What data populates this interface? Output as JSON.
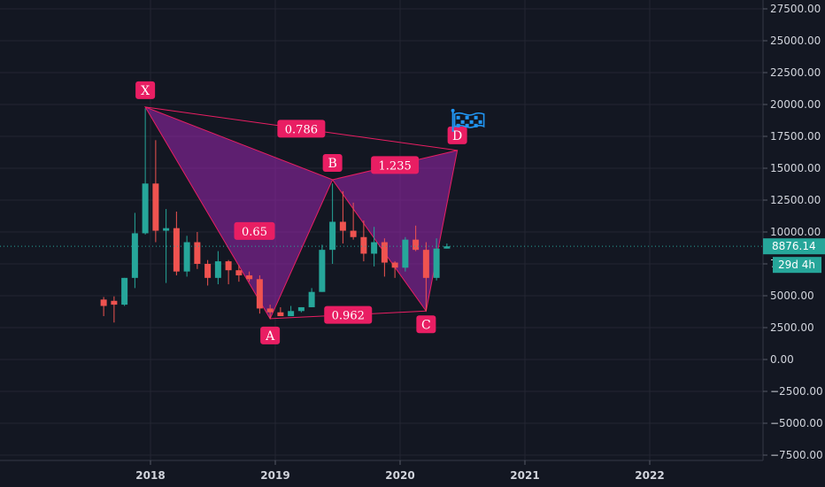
{
  "chart_data": {
    "type": "candlestick",
    "interval": "monthly",
    "y_ticks": [
      "27500.00",
      "25000.00",
      "22500.00",
      "20000.00",
      "17500.00",
      "15000.00",
      "12500.00",
      "10000.00",
      "7500.00",
      "5000.00",
      "2500.00",
      "0.00",
      "−2500.00",
      "−5000.00",
      "−7500.00"
    ],
    "x_ticks": [
      "2018",
      "2019",
      "2020",
      "2021",
      "2022"
    ],
    "ylim": [
      -8000,
      28500
    ],
    "current_price": "8876.14",
    "countdown": "29d 4h",
    "colors": {
      "up": "#26a69a",
      "down": "#ef5350",
      "pattern": "#e91e63",
      "pattern_fill": "#9c27b0",
      "price_line": "#26a69a"
    },
    "candles": [
      {
        "month": "2017-08",
        "o": 4700,
        "h": 4900,
        "l": 3400,
        "c": 4200
      },
      {
        "month": "2017-09",
        "o": 4600,
        "h": 4950,
        "l": 2900,
        "c": 4300
      },
      {
        "month": "2017-10",
        "o": 4300,
        "h": 6400,
        "l": 4200,
        "c": 6400
      },
      {
        "month": "2017-11",
        "o": 6400,
        "h": 11500,
        "l": 5600,
        "c": 9900
      },
      {
        "month": "2017-12",
        "o": 9900,
        "h": 19700,
        "l": 9800,
        "c": 13800
      },
      {
        "month": "2018-01",
        "o": 13800,
        "h": 17200,
        "l": 9200,
        "c": 10100
      },
      {
        "month": "2018-02",
        "o": 10100,
        "h": 11800,
        "l": 6000,
        "c": 10300
      },
      {
        "month": "2018-03",
        "o": 10300,
        "h": 11600,
        "l": 6600,
        "c": 6900
      },
      {
        "month": "2018-04",
        "o": 6900,
        "h": 9700,
        "l": 6500,
        "c": 9200
      },
      {
        "month": "2018-05",
        "o": 9200,
        "h": 10000,
        "l": 7100,
        "c": 7500
      },
      {
        "month": "2018-06",
        "o": 7500,
        "h": 7800,
        "l": 5800,
        "c": 6400
      },
      {
        "month": "2018-07",
        "o": 6400,
        "h": 8500,
        "l": 5900,
        "c": 7700
      },
      {
        "month": "2018-08",
        "o": 7700,
        "h": 7800,
        "l": 5900,
        "c": 7000
      },
      {
        "month": "2018-09",
        "o": 7000,
        "h": 7400,
        "l": 6100,
        "c": 6600
      },
      {
        "month": "2018-10",
        "o": 6600,
        "h": 6900,
        "l": 6100,
        "c": 6300
      },
      {
        "month": "2018-11",
        "o": 6300,
        "h": 6600,
        "l": 3600,
        "c": 4000
      },
      {
        "month": "2018-12",
        "o": 4000,
        "h": 4300,
        "l": 3200,
        "c": 3700
      },
      {
        "month": "2019-01",
        "o": 3700,
        "h": 4100,
        "l": 3400,
        "c": 3400
      },
      {
        "month": "2019-02",
        "o": 3400,
        "h": 4200,
        "l": 3400,
        "c": 3800
      },
      {
        "month": "2019-03",
        "o": 3800,
        "h": 4100,
        "l": 3700,
        "c": 4100
      },
      {
        "month": "2019-04",
        "o": 4100,
        "h": 5600,
        "l": 4100,
        "c": 5300
      },
      {
        "month": "2019-05",
        "o": 5300,
        "h": 9000,
        "l": 5300,
        "c": 8600
      },
      {
        "month": "2019-06",
        "o": 8600,
        "h": 13800,
        "l": 7500,
        "c": 10800
      },
      {
        "month": "2019-07",
        "o": 10800,
        "h": 13200,
        "l": 9100,
        "c": 10100
      },
      {
        "month": "2019-08",
        "o": 10100,
        "h": 12300,
        "l": 9400,
        "c": 9600
      },
      {
        "month": "2019-09",
        "o": 9600,
        "h": 10900,
        "l": 7700,
        "c": 8300
      },
      {
        "month": "2019-10",
        "o": 8300,
        "h": 10400,
        "l": 7300,
        "c": 9200
      },
      {
        "month": "2019-11",
        "o": 9200,
        "h": 9500,
        "l": 6500,
        "c": 7600
      },
      {
        "month": "2019-12",
        "o": 7600,
        "h": 7700,
        "l": 6400,
        "c": 7200
      },
      {
        "month": "2020-01",
        "o": 7200,
        "h": 9600,
        "l": 6900,
        "c": 9400
      },
      {
        "month": "2020-02",
        "o": 9400,
        "h": 10500,
        "l": 8500,
        "c": 8600
      },
      {
        "month": "2020-03",
        "o": 8600,
        "h": 9200,
        "l": 3800,
        "c": 6400
      },
      {
        "month": "2020-04",
        "o": 6400,
        "h": 9500,
        "l": 6200,
        "c": 8700
      },
      {
        "month": "2020-05",
        "o": 8700,
        "h": 9100,
        "l": 8700,
        "c": 8876
      }
    ],
    "harmonic_pattern": {
      "points": [
        {
          "label": "X",
          "month": "2017-12",
          "price": 19800
        },
        {
          "label": "A",
          "month": "2018-12",
          "price": 3200
        },
        {
          "label": "B",
          "month": "2019-06",
          "price": 14100
        },
        {
          "label": "C",
          "month": "2020-03",
          "price": 3800
        },
        {
          "label": "D",
          "month": "2020-06",
          "price": 16400
        }
      ],
      "ratios": [
        {
          "text": "0.65",
          "between": "XA-AB"
        },
        {
          "text": "0.786",
          "between": "XD"
        },
        {
          "text": "1.235",
          "between": "BD"
        },
        {
          "text": "0.962",
          "between": "AC"
        }
      ]
    }
  }
}
